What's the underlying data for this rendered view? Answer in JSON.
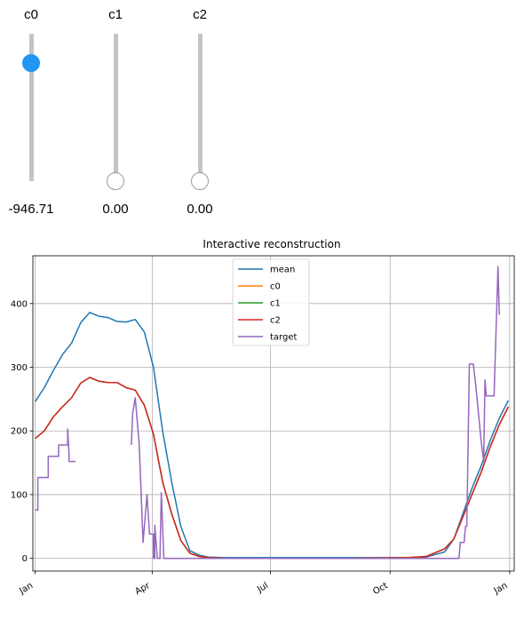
{
  "sliders": [
    {
      "label": "c0",
      "value_text": "-946.71",
      "level": 0.8,
      "active": true
    },
    {
      "label": "c1",
      "value_text": "0.00",
      "level": 0.0,
      "active": false
    },
    {
      "label": "c2",
      "value_text": "0.00",
      "level": 0.0,
      "active": false
    }
  ],
  "colors": {
    "mean": "#1f77b4",
    "c0": "#ff7f0e",
    "c1": "#2ca02c",
    "c2": "#d62728",
    "target": "#9467bd",
    "slider_active": "#2196f3",
    "slider_track": "#c4c4c4"
  },
  "chart_data": {
    "type": "line",
    "title": "Interactive reconstruction",
    "xlabel": "",
    "ylabel": "",
    "x_axis": "date",
    "xlim": [
      "2017-01-01",
      "2017-12-31"
    ],
    "ylim": [
      -20,
      475
    ],
    "x_ticks": [
      {
        "label": "Jan",
        "date": "2017-01-01"
      },
      {
        "label": "Apr",
        "date": "2017-04-01"
      },
      {
        "label": "Jul",
        "date": "2017-07-01"
      },
      {
        "label": "Oct",
        "date": "2017-10-01"
      },
      {
        "label": "Jan",
        "date": "2018-01-01"
      }
    ],
    "y_ticks": [
      0,
      100,
      200,
      300,
      400
    ],
    "grid": true,
    "legend": {
      "position": "upper-center",
      "entries": [
        "mean",
        "c0",
        "c1",
        "c2",
        "target"
      ]
    },
    "series": [
      {
        "name": "mean",
        "color": "#1f77b4",
        "points": [
          [
            "2017-01-01",
            246
          ],
          [
            "2017-01-08",
            268
          ],
          [
            "2017-01-15",
            295
          ],
          [
            "2017-01-22",
            320
          ],
          [
            "2017-01-29",
            338
          ],
          [
            "2017-02-05",
            370
          ],
          [
            "2017-02-12",
            386
          ],
          [
            "2017-02-19",
            380
          ],
          [
            "2017-02-26",
            378
          ],
          [
            "2017-03-05",
            372
          ],
          [
            "2017-03-12",
            371
          ],
          [
            "2017-03-19",
            375
          ],
          [
            "2017-03-26",
            355
          ],
          [
            "2017-04-02",
            300
          ],
          [
            "2017-04-09",
            200
          ],
          [
            "2017-04-16",
            120
          ],
          [
            "2017-04-23",
            50
          ],
          [
            "2017-04-30",
            12
          ],
          [
            "2017-05-07",
            5
          ],
          [
            "2017-05-14",
            2
          ],
          [
            "2017-05-28",
            1
          ],
          [
            "2017-07-01",
            1
          ],
          [
            "2017-09-01",
            1
          ],
          [
            "2017-10-15",
            1
          ],
          [
            "2017-10-29",
            2
          ],
          [
            "2017-11-12",
            10
          ],
          [
            "2017-11-19",
            30
          ],
          [
            "2017-11-26",
            70
          ],
          [
            "2017-12-03",
            110
          ],
          [
            "2017-12-10",
            145
          ],
          [
            "2017-12-17",
            185
          ],
          [
            "2017-12-24",
            220
          ],
          [
            "2017-12-31",
            248
          ]
        ]
      },
      {
        "name": "c0",
        "color": "#ff7f0e",
        "points": [
          [
            "2017-01-01",
            188
          ],
          [
            "2017-01-08",
            200
          ],
          [
            "2017-01-15",
            222
          ],
          [
            "2017-01-22",
            238
          ],
          [
            "2017-01-29",
            252
          ],
          [
            "2017-02-05",
            275
          ],
          [
            "2017-02-12",
            284
          ],
          [
            "2017-02-19",
            278
          ],
          [
            "2017-02-26",
            276
          ],
          [
            "2017-03-05",
            276
          ],
          [
            "2017-03-12",
            268
          ],
          [
            "2017-03-19",
            264
          ],
          [
            "2017-03-26",
            240
          ],
          [
            "2017-04-02",
            195
          ],
          [
            "2017-04-09",
            120
          ],
          [
            "2017-04-16",
            70
          ],
          [
            "2017-04-23",
            28
          ],
          [
            "2017-04-30",
            8
          ],
          [
            "2017-05-07",
            3
          ],
          [
            "2017-05-14",
            1
          ],
          [
            "2017-05-28",
            0
          ],
          [
            "2017-07-01",
            0
          ],
          [
            "2017-09-01",
            0
          ],
          [
            "2017-10-15",
            1
          ],
          [
            "2017-10-29",
            3
          ],
          [
            "2017-11-12",
            15
          ],
          [
            "2017-11-19",
            30
          ],
          [
            "2017-11-26",
            65
          ],
          [
            "2017-12-03",
            100
          ],
          [
            "2017-12-10",
            135
          ],
          [
            "2017-12-17",
            175
          ],
          [
            "2017-12-24",
            210
          ],
          [
            "2017-12-31",
            238
          ]
        ]
      },
      {
        "name": "c1",
        "color": "#2ca02c",
        "points": [
          [
            "2017-01-01",
            188
          ],
          [
            "2017-01-08",
            200
          ],
          [
            "2017-01-15",
            222
          ],
          [
            "2017-01-22",
            238
          ],
          [
            "2017-01-29",
            252
          ],
          [
            "2017-02-05",
            275
          ],
          [
            "2017-02-12",
            284
          ],
          [
            "2017-02-19",
            278
          ],
          [
            "2017-02-26",
            276
          ],
          [
            "2017-03-05",
            276
          ],
          [
            "2017-03-12",
            268
          ],
          [
            "2017-03-19",
            264
          ],
          [
            "2017-03-26",
            240
          ],
          [
            "2017-04-02",
            195
          ],
          [
            "2017-04-09",
            120
          ],
          [
            "2017-04-16",
            70
          ],
          [
            "2017-04-23",
            28
          ],
          [
            "2017-04-30",
            8
          ],
          [
            "2017-05-07",
            3
          ],
          [
            "2017-05-14",
            1
          ],
          [
            "2017-05-28",
            0
          ],
          [
            "2017-07-01",
            0
          ],
          [
            "2017-09-01",
            0
          ],
          [
            "2017-10-15",
            1
          ],
          [
            "2017-10-29",
            3
          ],
          [
            "2017-11-12",
            15
          ],
          [
            "2017-11-19",
            30
          ],
          [
            "2017-11-26",
            65
          ],
          [
            "2017-12-03",
            100
          ],
          [
            "2017-12-10",
            135
          ],
          [
            "2017-12-17",
            175
          ],
          [
            "2017-12-24",
            210
          ],
          [
            "2017-12-31",
            238
          ]
        ]
      },
      {
        "name": "c2",
        "color": "#d62728",
        "points": [
          [
            "2017-01-01",
            188
          ],
          [
            "2017-01-08",
            200
          ],
          [
            "2017-01-15",
            222
          ],
          [
            "2017-01-22",
            238
          ],
          [
            "2017-01-29",
            252
          ],
          [
            "2017-02-05",
            275
          ],
          [
            "2017-02-12",
            284
          ],
          [
            "2017-02-19",
            278
          ],
          [
            "2017-02-26",
            276
          ],
          [
            "2017-03-05",
            276
          ],
          [
            "2017-03-12",
            268
          ],
          [
            "2017-03-19",
            264
          ],
          [
            "2017-03-26",
            240
          ],
          [
            "2017-04-02",
            195
          ],
          [
            "2017-04-09",
            120
          ],
          [
            "2017-04-16",
            70
          ],
          [
            "2017-04-23",
            28
          ],
          [
            "2017-04-30",
            8
          ],
          [
            "2017-05-07",
            3
          ],
          [
            "2017-05-14",
            1
          ],
          [
            "2017-05-28",
            0
          ],
          [
            "2017-07-01",
            0
          ],
          [
            "2017-09-01",
            0
          ],
          [
            "2017-10-15",
            1
          ],
          [
            "2017-10-29",
            3
          ],
          [
            "2017-11-12",
            15
          ],
          [
            "2017-11-19",
            30
          ],
          [
            "2017-11-26",
            65
          ],
          [
            "2017-12-03",
            100
          ],
          [
            "2017-12-10",
            135
          ],
          [
            "2017-12-17",
            175
          ],
          [
            "2017-12-24",
            210
          ],
          [
            "2017-12-31",
            238
          ]
        ]
      },
      {
        "name": "target",
        "color": "#9467bd",
        "segments": [
          [
            [
              "2017-01-01",
              76
            ],
            [
              "2017-01-03",
              76
            ],
            [
              "2017-01-03",
              127
            ],
            [
              "2017-01-11",
              127
            ],
            [
              "2017-01-11",
              160
            ],
            [
              "2017-01-19",
              160
            ],
            [
              "2017-01-19",
              178
            ],
            [
              "2017-01-26",
              178
            ],
            [
              "2017-01-26",
              203
            ],
            [
              "2017-01-27",
              165
            ],
            [
              "2017-01-27",
              152
            ],
            [
              "2017-02-01",
              152
            ]
          ],
          [
            [
              "2017-03-16",
              178
            ],
            [
              "2017-03-17",
              228
            ],
            [
              "2017-03-19",
              252
            ],
            [
              "2017-03-22",
              180
            ],
            [
              "2017-03-25",
              25
            ],
            [
              "2017-03-28",
              100
            ],
            [
              "2017-03-30",
              38
            ],
            [
              "2017-04-02",
              38
            ],
            [
              "2017-04-02",
              0
            ],
            [
              "2017-04-03",
              0
            ],
            [
              "2017-04-03",
              52
            ],
            [
              "2017-04-05",
              0
            ],
            [
              "2017-04-07",
              0
            ],
            [
              "2017-04-08",
              103
            ],
            [
              "2017-04-10",
              0
            ],
            [
              "2017-10-30",
              0
            ],
            [
              "2017-10-31",
              0
            ],
            [
              "2017-11-15",
              0
            ],
            [
              "2017-11-23",
              0
            ],
            [
              "2017-11-24",
              25
            ],
            [
              "2017-11-27",
              25
            ],
            [
              "2017-11-28",
              50
            ],
            [
              "2017-11-29",
              50
            ],
            [
              "2017-12-01",
              305
            ],
            [
              "2017-12-04",
              305
            ],
            [
              "2017-12-06",
              270
            ],
            [
              "2017-12-10",
              185
            ],
            [
              "2017-12-12",
              152
            ],
            [
              "2017-12-13",
              280
            ],
            [
              "2017-12-14",
              255
            ],
            [
              "2017-12-20",
              255
            ],
            [
              "2017-12-23",
              458
            ],
            [
              "2017-12-24",
              382
            ]
          ]
        ]
      }
    ]
  }
}
